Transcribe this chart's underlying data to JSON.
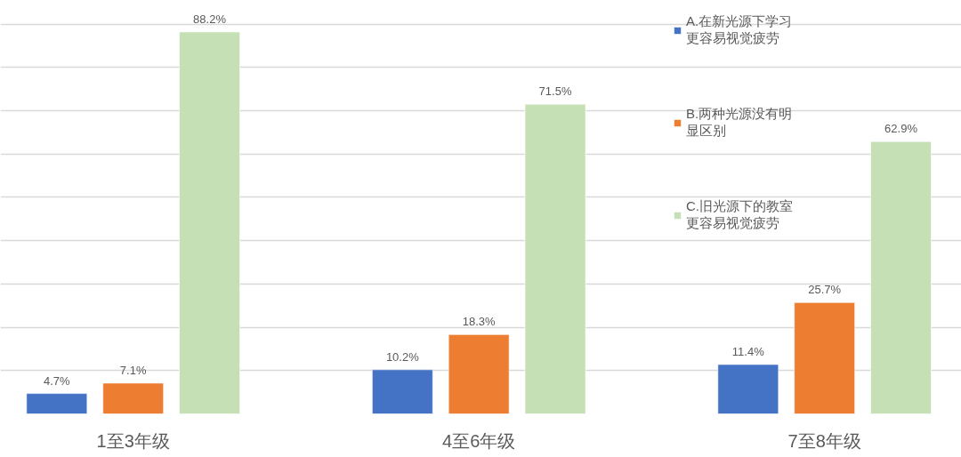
{
  "chart_data": {
    "type": "bar",
    "categories": [
      "1至3年级",
      "4至6年级",
      "7至8年级"
    ],
    "series": [
      {
        "name": "A.在新光源下学习更容易视觉疲劳",
        "color": "#4472c4",
        "values": [
          4.7,
          10.2,
          11.4
        ],
        "value_labels": [
          "4.7%",
          "10.2%",
          "11.4%"
        ]
      },
      {
        "name": "B.两种光源没有明显区别",
        "color": "#ed7d31",
        "values": [
          7.1,
          18.3,
          25.7
        ],
        "value_labels": [
          "7.1%",
          "18.3%",
          "25.7%"
        ]
      },
      {
        "name": "C.旧光源下的教室更容易视觉疲劳",
        "color": "#c5e0b4",
        "values": [
          88.2,
          71.5,
          62.9
        ],
        "value_labels": [
          "88.2%",
          "71.5%",
          "62.9%"
        ]
      }
    ],
    "grid": "y",
    "legend": "top right",
    "tick_labels": "x"
  }
}
